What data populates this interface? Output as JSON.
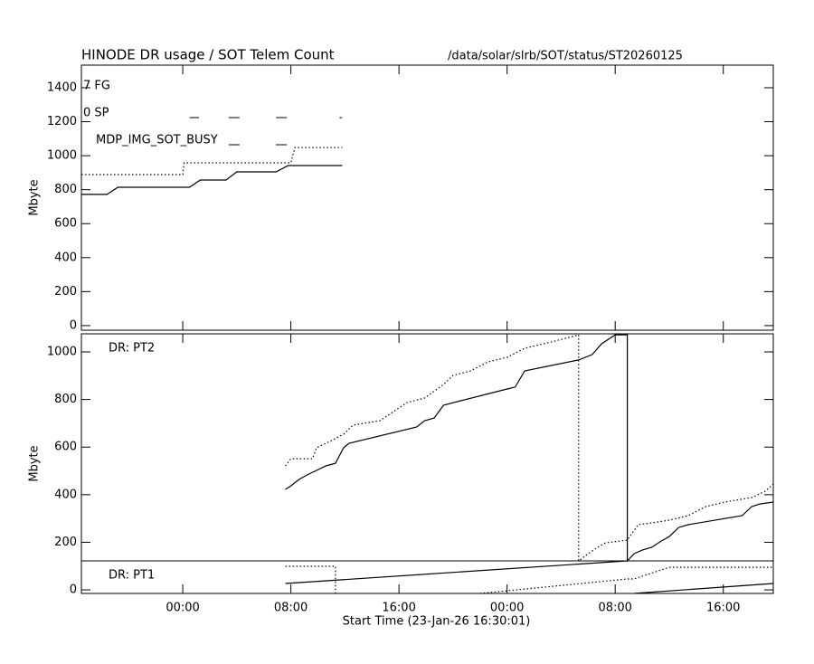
{
  "header": {
    "title": "HINODE DR usage / SOT Telem Count",
    "path": "/data/solar/slrb/SOT/status/ST20260125"
  },
  "chart_data": [
    {
      "type": "line",
      "ylabel": "Mbyte",
      "xlim": [
        0,
        51.2
      ],
      "ylim": [
        -27,
        1533
      ],
      "yticks": [
        0,
        200,
        400,
        600,
        800,
        1000,
        1200,
        1400
      ],
      "lanes": [
        {
          "label": "7 FG"
        },
        {
          "label": "0 SP",
          "intervals": [
            [
              8.0,
              8.7
            ],
            [
              10.9,
              11.7
            ],
            [
              14.4,
              15.2
            ],
            [
              19.1,
              19.3
            ]
          ]
        },
        {
          "label": "MDP_IMG_SOT_BUSY",
          "intervals": [
            [
              10.9,
              11.7
            ],
            [
              14.4,
              15.2
            ]
          ]
        }
      ],
      "series": [
        {
          "color": "#000000",
          "dash": "solid",
          "x": [
            0,
            1.9,
            2.7,
            8.0,
            8.8,
            10.7,
            11.5,
            14.4,
            15.3,
            19.3
          ],
          "values": [
            772,
            772,
            814,
            814,
            857,
            857,
            905,
            905,
            942,
            942
          ]
        },
        {
          "color": "#000000",
          "dash": "dotted",
          "x": [
            0,
            7.5,
            7.6,
            15.5,
            15.8,
            19.3
          ],
          "values": [
            889,
            889,
            958,
            958,
            1048,
            1048
          ]
        }
      ]
    },
    {
      "type": "line",
      "ylabel": "Mbyte",
      "xlabel": "Start Time (23-Jan-26 16:30:01)",
      "xlim": [
        0,
        51.2
      ],
      "ylim": [
        -15,
        1076
      ],
      "yticks": [
        0,
        200,
        400,
        600,
        800,
        1000
      ],
      "xticks": [
        {
          "value": 7.5,
          "label": "00:00"
        },
        {
          "value": 15.5,
          "label": "08:00"
        },
        {
          "value": 23.5,
          "label": "16:00"
        },
        {
          "value": 31.5,
          "label": "00:00"
        },
        {
          "value": 39.5,
          "label": "08:00"
        },
        {
          "value": 47.5,
          "label": "16:00"
        }
      ],
      "annotations": [
        "DR: PT2",
        "DR: PT1"
      ],
      "divider": 122,
      "series": [
        {
          "color": "#000000",
          "dash": "solid",
          "x": [
            15.1,
            15.5,
            16.1,
            16.7,
            17.4,
            18.1,
            18.8,
            19.4,
            19.8,
            24.8,
            25.4,
            26.1,
            26.8,
            31.5,
            32.1,
            32.8,
            36.8,
            37.8,
            38.5,
            39.5,
            40.4,
            40.4,
            40.9,
            41.5,
            42.2,
            42.9,
            43.5,
            44.2,
            44.9,
            48.9,
            49.6,
            50.2,
            51.2
          ],
          "values": [
            422,
            437,
            464,
            483,
            502,
            521,
            532,
            597,
            616,
            684,
            711,
            722,
            776,
            844,
            852,
            920,
            966,
            989,
            1034,
            1072,
            1072,
            122,
            152,
            167,
            179,
            205,
            224,
            262,
            274,
            312,
            350,
            361,
            369
          ]
        },
        {
          "color": "#000000",
          "dash": "dotted",
          "x": [
            15.1,
            15.5,
            17.1,
            17.4,
            18.4,
            19.4,
            20.1,
            22.1,
            23.1,
            24.1,
            25.4,
            26.8,
            27.5,
            28.8,
            30.1,
            31.5,
            32.8,
            34.8,
            36.8,
            36.8,
            37.5,
            38.2,
            38.8,
            40.4,
            41.2,
            42.2,
            43.5,
            44.9,
            46.2,
            47.6,
            49.6,
            50.6,
            51.2
          ],
          "values": [
            521,
            551,
            551,
            597,
            624,
            654,
            692,
            711,
            749,
            787,
            806,
            863,
            901,
            920,
            958,
            977,
            1015,
            1042,
            1072,
            122,
            152,
            179,
            198,
            209,
            274,
            281,
            293,
            312,
            350,
            369,
            388,
            414,
            445
          ]
        },
        {
          "color": "#000000",
          "dash": "solid",
          "x": [
            15.1,
            40.4,
            null,
            40.9,
            51.2
          ],
          "values": [
            27,
            122,
            null,
            -15,
            27
          ]
        },
        {
          "color": "#000000",
          "dash": "dotted",
          "x": [
            15.1,
            18.8,
            18.8,
            null,
            29.5,
            40.4,
            40.9,
            42.9,
            43.5,
            51.2
          ],
          "values": [
            99,
            99,
            -15,
            null,
            -15,
            46,
            46,
            84,
            95,
            95
          ]
        }
      ]
    }
  ]
}
